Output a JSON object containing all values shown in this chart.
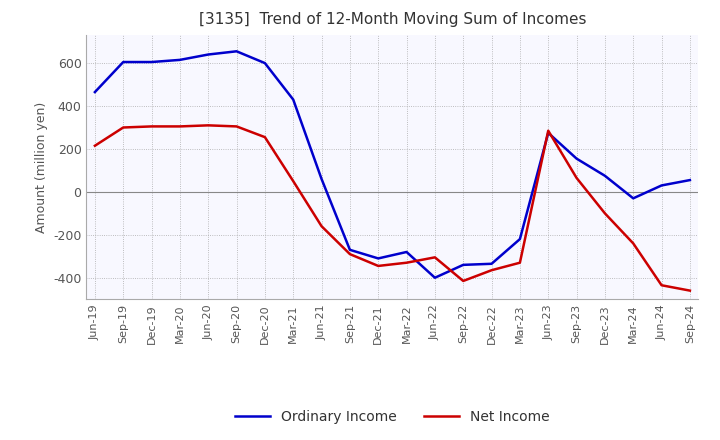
{
  "title": "[3135]  Trend of 12-Month Moving Sum of Incomes",
  "ylabel": "Amount (million yen)",
  "legend": [
    "Ordinary Income",
    "Net Income"
  ],
  "line_colors": [
    "#0000cc",
    "#cc0000"
  ],
  "x_labels": [
    "Jun-19",
    "Sep-19",
    "Dec-19",
    "Mar-20",
    "Jun-20",
    "Sep-20",
    "Dec-20",
    "Mar-21",
    "Jun-21",
    "Sep-21",
    "Dec-21",
    "Mar-22",
    "Jun-22",
    "Sep-22",
    "Dec-22",
    "Mar-23",
    "Jun-23",
    "Sep-23",
    "Dec-23",
    "Mar-24",
    "Jun-24",
    "Sep-24"
  ],
  "ordinary_income": [
    465,
    605,
    605,
    615,
    640,
    655,
    600,
    430,
    60,
    -270,
    -310,
    -280,
    -400,
    -340,
    -335,
    -220,
    275,
    155,
    75,
    -30,
    30,
    55
  ],
  "net_income": [
    215,
    300,
    305,
    305,
    310,
    305,
    255,
    50,
    -160,
    -290,
    -345,
    -330,
    -305,
    -415,
    -365,
    -330,
    285,
    65,
    -100,
    -240,
    -435,
    -460
  ],
  "ylim": [
    -500,
    730
  ],
  "yticks": [
    -400,
    -200,
    0,
    200,
    400,
    600
  ],
  "background_color": "#ffffff",
  "plot_bg_color": "#f8f8ff",
  "grid_color": "#aaaaaa"
}
